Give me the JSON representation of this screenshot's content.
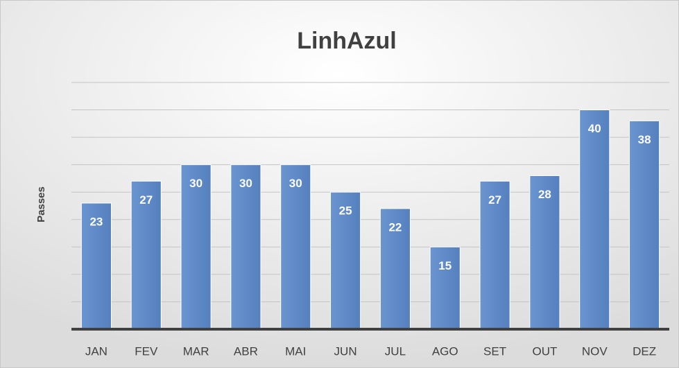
{
  "chart_data": {
    "type": "bar",
    "title": "LinhAzul",
    "y_label": "Passes",
    "categories": [
      "JAN",
      "FEV",
      "MAR",
      "ABR",
      "MAI",
      "JUN",
      "JUL",
      "AGO",
      "SET",
      "OUT",
      "NOV",
      "DEZ"
    ],
    "values": [
      23,
      27,
      30,
      30,
      30,
      25,
      22,
      15,
      27,
      28,
      40,
      38
    ],
    "color": "#5e8ac7",
    "ylim": [
      0,
      45
    ],
    "yticks": [
      0,
      5,
      10,
      15,
      20,
      25,
      30,
      35,
      40,
      45
    ],
    "grid": true
  }
}
